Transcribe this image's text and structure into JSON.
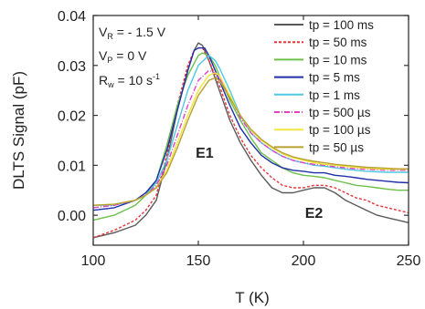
{
  "chart_data": {
    "type": "line",
    "xlabel": "T (K)",
    "ylabel": "DLTS Signal (pF)",
    "xlim": [
      100,
      250
    ],
    "ylim": [
      -0.006,
      0.04
    ],
    "xticks": [
      "100",
      "150",
      "200",
      "250"
    ],
    "yticks": [
      "0.00",
      "0.01",
      "0.02",
      "0.03",
      "0.04"
    ],
    "grid": false,
    "legend_position": "top-right",
    "parameters": {
      "vr": {
        "main": "V",
        "sub": "R",
        "rest": " = - 1.5 V"
      },
      "vp": {
        "main": "V",
        "sub": "P",
        "rest": " = 0 V"
      },
      "rw": {
        "main": "R",
        "sub": "w",
        "rest": " = 10 s",
        "sup": "-1"
      }
    },
    "annotations": [
      {
        "text": "E1",
        "x": 153,
        "y": 0.0115
      },
      {
        "text": "E2",
        "x": 205,
        "y": -0.0005
      }
    ],
    "series": [
      {
        "name": "tp = 100 ms",
        "color": "#5a5a5a",
        "dash": "",
        "x": [
          100,
          110,
          120,
          125,
          130,
          135,
          140,
          145,
          148,
          150,
          152,
          155,
          160,
          165,
          170,
          175,
          180,
          185,
          190,
          195,
          200,
          205,
          210,
          215,
          220,
          225,
          230,
          235,
          240,
          245,
          250
        ],
        "y": [
          -0.0045,
          -0.0035,
          -0.002,
          0.0,
          0.003,
          0.011,
          0.021,
          0.029,
          0.033,
          0.0345,
          0.034,
          0.031,
          0.025,
          0.019,
          0.0145,
          0.011,
          0.008,
          0.0055,
          0.0045,
          0.0045,
          0.005,
          0.0055,
          0.0055,
          0.0045,
          0.003,
          0.002,
          0.001,
          0.0,
          -0.0005,
          -0.001,
          -0.0015
        ]
      },
      {
        "name": "tp = 50 ms",
        "color": "#e8343a",
        "dash": "3,2",
        "x": [
          100,
          110,
          120,
          125,
          130,
          135,
          140,
          145,
          148,
          150,
          152,
          155,
          160,
          165,
          170,
          175,
          180,
          185,
          190,
          195,
          200,
          205,
          210,
          215,
          220,
          225,
          230,
          235,
          240,
          245,
          250
        ],
        "y": [
          -0.0045,
          -0.003,
          -0.001,
          0.001,
          0.004,
          0.012,
          0.022,
          0.03,
          0.033,
          0.0335,
          0.0335,
          0.031,
          0.026,
          0.02,
          0.0155,
          0.012,
          0.0095,
          0.0075,
          0.006,
          0.0055,
          0.0055,
          0.006,
          0.006,
          0.0055,
          0.0045,
          0.0035,
          0.003,
          0.002,
          0.0015,
          0.001,
          0.0005
        ]
      },
      {
        "name": "tp = 10 ms",
        "color": "#6cc04a",
        "dash": "",
        "x": [
          100,
          110,
          120,
          125,
          130,
          135,
          140,
          145,
          150,
          152,
          155,
          158,
          160,
          165,
          170,
          175,
          180,
          185,
          190,
          195,
          200,
          205,
          210,
          215,
          220,
          225,
          230,
          235,
          240,
          245,
          250
        ],
        "y": [
          -0.001,
          0.0,
          0.002,
          0.004,
          0.007,
          0.014,
          0.022,
          0.028,
          0.032,
          0.0325,
          0.032,
          0.03,
          0.028,
          0.023,
          0.019,
          0.0155,
          0.0125,
          0.011,
          0.0095,
          0.0085,
          0.008,
          0.0078,
          0.0075,
          0.007,
          0.0065,
          0.006,
          0.0058,
          0.0055,
          0.0052,
          0.005,
          0.005
        ]
      },
      {
        "name": "tp = 5 ms",
        "color": "#1f2fa8",
        "dash": "",
        "x": [
          100,
          110,
          120,
          125,
          130,
          135,
          140,
          145,
          148,
          150,
          153,
          155,
          160,
          165,
          170,
          175,
          180,
          185,
          190,
          195,
          200,
          205,
          210,
          215,
          220,
          225,
          230,
          235,
          240,
          245,
          250
        ],
        "y": [
          0.001,
          0.0015,
          0.003,
          0.0045,
          0.007,
          0.013,
          0.021,
          0.029,
          0.033,
          0.0335,
          0.0335,
          0.032,
          0.027,
          0.022,
          0.0175,
          0.0145,
          0.012,
          0.0105,
          0.0095,
          0.009,
          0.0088,
          0.0085,
          0.0085,
          0.008,
          0.0078,
          0.0075,
          0.0072,
          0.007,
          0.0068,
          0.0066,
          0.0065
        ]
      },
      {
        "name": "tp = 1 ms",
        "color": "#4fc8e0",
        "dash": "",
        "x": [
          100,
          110,
          120,
          125,
          130,
          135,
          140,
          145,
          150,
          155,
          158,
          160,
          165,
          170,
          175,
          180,
          185,
          190,
          195,
          200,
          205,
          210,
          215,
          220,
          225,
          230,
          235,
          240,
          245,
          250
        ],
        "y": [
          0.002,
          0.002,
          0.003,
          0.004,
          0.0065,
          0.011,
          0.018,
          0.025,
          0.03,
          0.032,
          0.031,
          0.0295,
          0.025,
          0.02,
          0.0165,
          0.0145,
          0.013,
          0.0118,
          0.011,
          0.0105,
          0.01,
          0.0098,
          0.0095,
          0.0092,
          0.009,
          0.0088,
          0.0087,
          0.0086,
          0.0086,
          0.0086
        ]
      },
      {
        "name": "tp = 500 µs",
        "color": "#e040c8",
        "dash": "6,2,1,2",
        "x": [
          100,
          110,
          120,
          125,
          130,
          135,
          140,
          145,
          150,
          155,
          158,
          160,
          165,
          170,
          175,
          180,
          185,
          190,
          195,
          200,
          205,
          210,
          215,
          220,
          225,
          230,
          235,
          240,
          245,
          250
        ],
        "y": [
          0.0015,
          0.002,
          0.003,
          0.004,
          0.006,
          0.01,
          0.016,
          0.022,
          0.027,
          0.029,
          0.0285,
          0.0275,
          0.024,
          0.0195,
          0.0165,
          0.0145,
          0.013,
          0.0118,
          0.011,
          0.0105,
          0.0102,
          0.01,
          0.0097,
          0.0095,
          0.0093,
          0.0092,
          0.0091,
          0.009,
          0.009,
          0.009
        ]
      },
      {
        "name": "tp = 100 µs",
        "color": "#f0e640",
        "dash": "",
        "x": [
          100,
          110,
          120,
          125,
          130,
          135,
          140,
          145,
          150,
          155,
          158,
          160,
          165,
          170,
          175,
          180,
          185,
          190,
          195,
          200,
          205,
          210,
          215,
          220,
          225,
          230,
          235,
          240,
          245,
          250
        ],
        "y": [
          0.002,
          0.0022,
          0.003,
          0.004,
          0.0055,
          0.009,
          0.0145,
          0.02,
          0.025,
          0.028,
          0.0285,
          0.028,
          0.024,
          0.02,
          0.017,
          0.015,
          0.0135,
          0.0123,
          0.0115,
          0.011,
          0.0105,
          0.0102,
          0.01,
          0.0098,
          0.0096,
          0.0094,
          0.0093,
          0.0092,
          0.0092,
          0.0092
        ]
      },
      {
        "name": "tp = 50 µs",
        "color": "#b8a030",
        "dash": "",
        "x": [
          100,
          110,
          120,
          125,
          130,
          135,
          140,
          145,
          150,
          155,
          158,
          160,
          165,
          170,
          175,
          180,
          185,
          190,
          195,
          200,
          205,
          210,
          215,
          220,
          225,
          230,
          235,
          240,
          245,
          250
        ],
        "y": [
          0.002,
          0.0022,
          0.003,
          0.004,
          0.0055,
          0.0085,
          0.0135,
          0.019,
          0.024,
          0.027,
          0.0275,
          0.027,
          0.0235,
          0.02,
          0.0172,
          0.0152,
          0.0137,
          0.0125,
          0.0117,
          0.0112,
          0.0108,
          0.0105,
          0.0102,
          0.01,
          0.0098,
          0.0096,
          0.0095,
          0.0094,
          0.0093,
          0.0093
        ]
      }
    ]
  }
}
